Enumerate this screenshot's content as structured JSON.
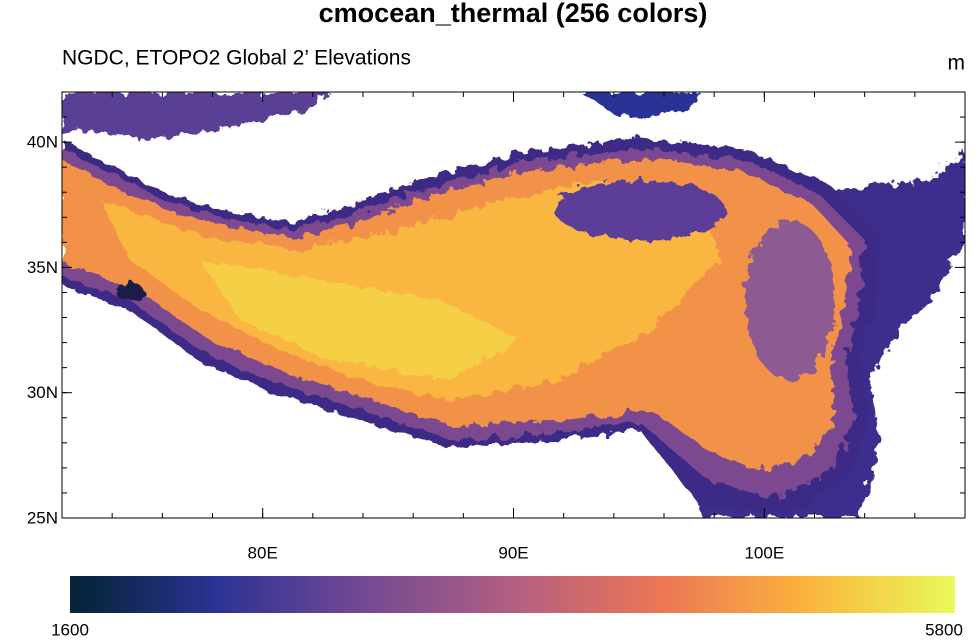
{
  "chart_data": {
    "type": "map",
    "title": "cmocean_thermal (256 colors)",
    "subtitle": "NGDC, ETOPO2 Global 2’ Elevations",
    "units": "m",
    "xlim": [
      72,
      108
    ],
    "ylim": [
      25,
      42
    ],
    "xticks": [
      {
        "value": 80,
        "label": "80E"
      },
      {
        "value": 90,
        "label": "90E"
      },
      {
        "value": 100,
        "label": "100E"
      }
    ],
    "yticks": [
      {
        "value": 25,
        "label": "25N"
      },
      {
        "value": 30,
        "label": "30N"
      },
      {
        "value": 35,
        "label": "35N"
      },
      {
        "value": 40,
        "label": "40N"
      }
    ],
    "colormap": [
      "#042333",
      "#2c3395",
      "#744992",
      "#b15f82",
      "#eb7655",
      "#fbb43d",
      "#e8fa5b"
    ],
    "colorbar": {
      "range": [
        1600,
        5800
      ],
      "ticks": [
        1600,
        5800
      ]
    }
  }
}
